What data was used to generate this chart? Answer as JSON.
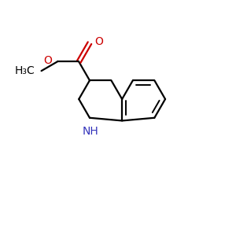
{
  "background_color": "#ffffff",
  "bond_color": "#000000",
  "oxygen_color": "#cc0000",
  "nitrogen_color": "#3333bb",
  "line_width": 1.6,
  "figsize": [
    3.0,
    3.0
  ],
  "dpi": 100,
  "bl": 0.32,
  "xlim": [
    -1.6,
    1.8
  ],
  "ylim": [
    -1.5,
    1.5
  ]
}
